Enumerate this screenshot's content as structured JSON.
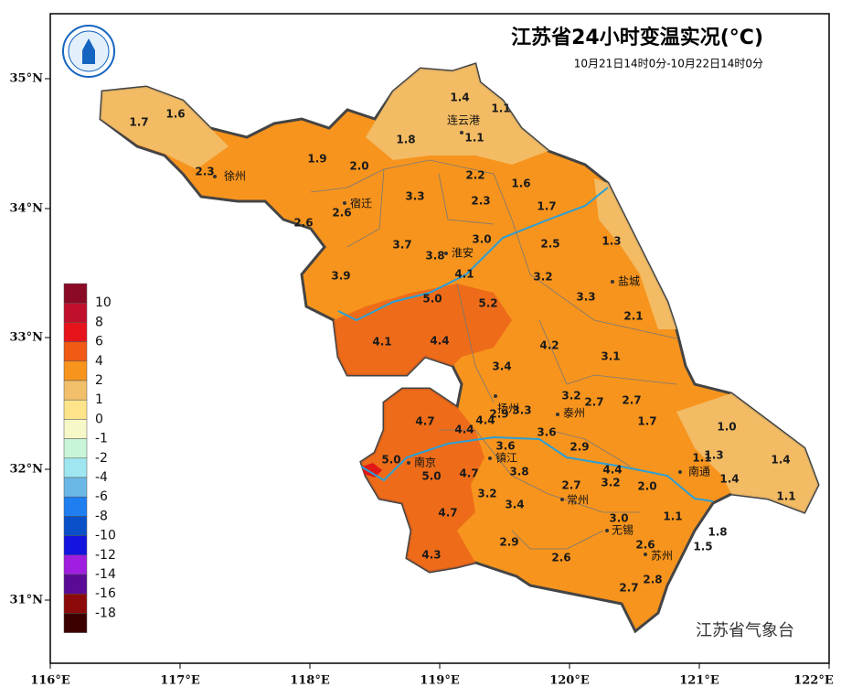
{
  "header": {
    "title": "江苏省24小时变温实况(°C)",
    "subtitle": "10月21日14时0分-10月22日14时0分"
  },
  "map": {
    "cities": [
      "连云港",
      "徐州",
      "宿迁",
      "淮安",
      "盐城",
      "扬州",
      "泰州",
      "镇江",
      "南京",
      "南通",
      "常州",
      "无锡",
      "苏州"
    ],
    "stations": [
      "1.4",
      "1.1",
      "1.7",
      "1.6",
      "1.8",
      "1.1",
      "1.9",
      "2.0",
      "2.3",
      "2.2",
      "1.6",
      "3.3",
      "2.3",
      "1.7",
      "2.6",
      "2.6",
      "3.0",
      "2.5",
      "1.3",
      "3.7",
      "3.8",
      "3.9",
      "4.1",
      "3.2",
      "5.0",
      "5.2",
      "3.3",
      "2.1",
      "4.1",
      "4.4",
      "4.2",
      "3.1",
      "3.4",
      "3.2",
      "2.7",
      "2.7",
      "3.3",
      "2.9",
      "4.7",
      "4.4",
      "4.4",
      "1.7",
      "1.0",
      "3.6",
      "3.6",
      "2.9",
      "1.1",
      "1.3",
      "1.4",
      "5.0",
      "3.8",
      "4.7",
      "5.0",
      "4.4",
      "1.4",
      "3.2",
      "2.7",
      "2.0",
      "3.2",
      "1.1",
      "3.4",
      "4.7",
      "3.0",
      "1.1",
      "1.8",
      "2.9",
      "2.6",
      "1.5",
      "2.6",
      "4.3",
      "2.8",
      "2.7"
    ]
  },
  "legend": {
    "labels": [
      "10",
      "8",
      "6",
      "4",
      "2",
      "1",
      "0",
      "-1",
      "-2",
      "-4",
      "-6",
      "-8",
      "-10",
      "-12",
      "-14",
      "-16",
      "-18"
    ]
  },
  "axes": {
    "x": [
      "116°E",
      "117°E",
      "118°E",
      "119°E",
      "120°E",
      "121°E",
      "122°E"
    ],
    "y": [
      "35°N",
      "34°N",
      "33°N",
      "32°N",
      "31°N"
    ]
  },
  "footer": "江苏省气象台"
}
